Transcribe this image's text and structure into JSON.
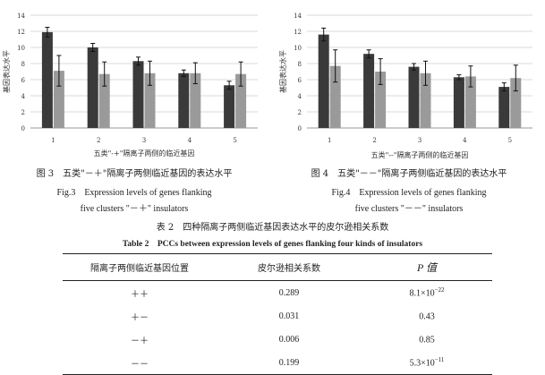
{
  "chart_data": [
    {
      "type": "bar",
      "ylabel": "基因表达水平",
      "xlabel": "五类\"-+\"隔离子两侧的临近基因",
      "ylim": [
        0,
        14
      ],
      "yticks": [
        0,
        2,
        4,
        6,
        8,
        10,
        12,
        14
      ],
      "categories": [
        "1",
        "2",
        "3",
        "4",
        "5"
      ],
      "series": [
        {
          "color": "#3a3a3a",
          "values": [
            11.9,
            10.0,
            8.3,
            6.8,
            5.3
          ],
          "errors": [
            0.6,
            0.5,
            0.5,
            0.4,
            0.5
          ]
        },
        {
          "color": "#9a9a9a",
          "values": [
            7.1,
            6.7,
            6.8,
            6.8,
            6.7
          ],
          "errors": [
            1.9,
            1.5,
            1.5,
            1.3,
            1.5
          ]
        }
      ],
      "caption_cn": "图 3　五类\"－＋\"隔离子两侧临近基因的表达水平",
      "caption_en_1": "Fig.3　Expression levels of genes flanking",
      "caption_en_2": "five clusters \"－＋\" insulators"
    },
    {
      "type": "bar",
      "ylabel": "基因表达水平",
      "xlabel": "五类\"--\"隔离子两侧的临近基因",
      "ylim": [
        0,
        14
      ],
      "yticks": [
        0,
        2,
        4,
        6,
        8,
        10,
        12,
        14
      ],
      "categories": [
        "1",
        "2",
        "3",
        "4",
        "5"
      ],
      "series": [
        {
          "color": "#3a3a3a",
          "values": [
            11.6,
            9.2,
            7.6,
            6.3,
            5.1
          ],
          "errors": [
            0.8,
            0.5,
            0.4,
            0.3,
            0.5
          ]
        },
        {
          "color": "#9a9a9a",
          "values": [
            7.7,
            7.0,
            6.8,
            6.4,
            6.2
          ],
          "errors": [
            2.0,
            1.6,
            1.5,
            1.3,
            1.6
          ]
        }
      ],
      "caption_cn": "图 4　五类\"－－\"隔离子两侧临近基因的表达水平",
      "caption_en_1": "Fig.4　Expression levels of genes flanking",
      "caption_en_2": "five clusters \"－－\" insulators"
    }
  ],
  "table": {
    "title_cn": "表 2　四种隔离子两侧临近基因表达水平的皮尔逊相关系数",
    "title_en": "Table 2　PCCs between expression levels of genes flanking four kinds of insulators",
    "headers": [
      "隔离子两侧临近基因位置",
      "皮尔逊相关系数",
      "P 值"
    ],
    "rows": [
      {
        "pos": "＋＋",
        "pcc": "0.289",
        "p_base": "8.1×10",
        "p_exp": "−22"
      },
      {
        "pos": "＋－",
        "pcc": "0.031",
        "p_base": "0.43",
        "p_exp": ""
      },
      {
        "pos": "－＋",
        "pcc": "0.006",
        "p_base": "0.85",
        "p_exp": ""
      },
      {
        "pos": "－－",
        "pcc": "0.199",
        "p_base": "5.3×10",
        "p_exp": "−11"
      }
    ]
  }
}
